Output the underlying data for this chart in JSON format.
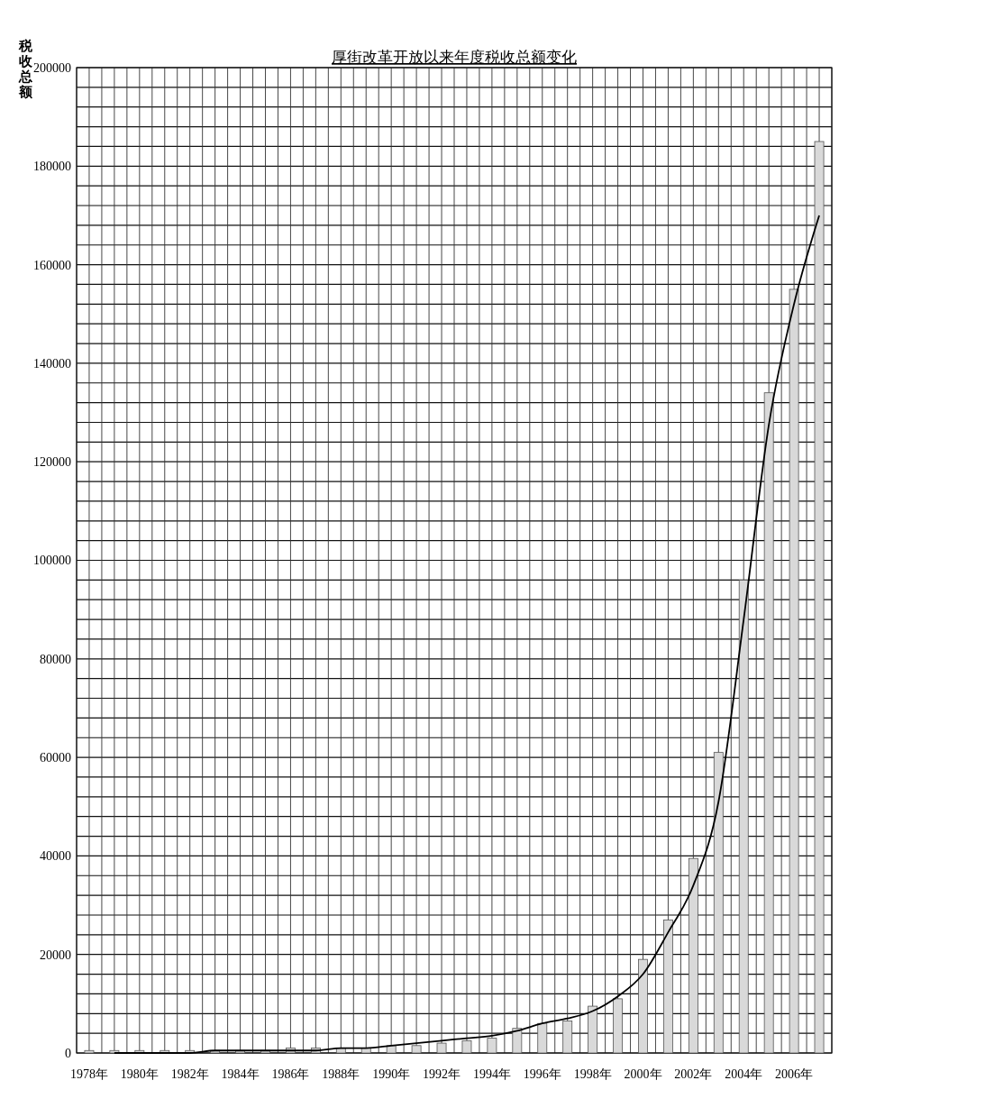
{
  "chart_data": {
    "type": "bar",
    "title": "厚街改革开放以来年度税收总额变化",
    "ylabel": "税收总额",
    "categories": [
      "1978年",
      null,
      "1980年",
      null,
      "1982年",
      null,
      "1984年",
      null,
      "1986年",
      null,
      "1988年",
      null,
      "1990年",
      null,
      "1992年",
      null,
      "1994年",
      null,
      "1996年",
      null,
      "1998年",
      null,
      "2000年",
      null,
      "2002年",
      null,
      "2004年",
      null,
      "2006年",
      null
    ],
    "series": [
      {
        "color": "#d9d9d9",
        "values": [
          500,
          500,
          500,
          500,
          500,
          500,
          500,
          500,
          1000,
          1000,
          1000,
          1000,
          1500,
          1500,
          2000,
          2500,
          3000,
          5000,
          6000,
          6500,
          9500,
          11000,
          19000,
          27000,
          39500,
          61000,
          96000,
          134000,
          155000,
          185000
        ]
      },
      {
        "type": "line",
        "color": "#000000",
        "values": [
          null,
          0,
          0,
          0,
          0,
          500,
          500,
          500,
          500,
          500,
          1000,
          1000,
          1500,
          2000,
          2500,
          3000,
          3500,
          4500,
          6000,
          7000,
          8500,
          11500,
          16000,
          24500,
          34000,
          51000,
          88000,
          127500,
          152000,
          170000
        ]
      }
    ],
    "ylim": [
      0,
      200000
    ],
    "yticks": [
      0,
      {
        "value": 4000,
        "label": null
      },
      {
        "value": 8000,
        "label": null
      },
      {
        "value": 12000,
        "label": null
      },
      {
        "value": 16000,
        "label": null
      },
      20000,
      {
        "value": 24000,
        "label": null
      },
      {
        "value": 28000,
        "label": null
      },
      {
        "value": 32000,
        "label": null
      },
      {
        "value": 36000,
        "label": null
      },
      40000,
      {
        "value": 44000,
        "label": null
      },
      {
        "value": 48000,
        "label": null
      },
      {
        "value": 52000,
        "label": null
      },
      {
        "value": 56000,
        "label": null
      },
      60000,
      {
        "value": 64000,
        "label": null
      },
      {
        "value": 68000,
        "label": null
      },
      {
        "value": 72000,
        "label": null
      },
      {
        "value": 76000,
        "label": null
      },
      80000,
      {
        "value": 84000,
        "label": null
      },
      {
        "value": 88000,
        "label": null
      },
      {
        "value": 92000,
        "label": null
      },
      {
        "value": 96000,
        "label": null
      },
      100000,
      {
        "value": 104000,
        "label": null
      },
      {
        "value": 108000,
        "label": null
      },
      {
        "value": 112000,
        "label": null
      },
      {
        "value": 116000,
        "label": null
      },
      120000,
      {
        "value": 124000,
        "label": null
      },
      {
        "value": 128000,
        "label": null
      },
      {
        "value": 132000,
        "label": null
      },
      {
        "value": 136000,
        "label": null
      },
      140000,
      {
        "value": 144000,
        "label": null
      },
      {
        "value": 148000,
        "label": null
      },
      {
        "value": 152000,
        "label": null
      },
      {
        "value": 156000,
        "label": null
      },
      160000,
      {
        "value": 164000,
        "label": null
      },
      {
        "value": 168000,
        "label": null
      },
      {
        "value": 172000,
        "label": null
      },
      {
        "value": 176000,
        "label": null
      },
      180000,
      {
        "value": 184000,
        "label": null
      },
      {
        "value": 188000,
        "label": null
      },
      {
        "value": 192000,
        "label": null
      },
      {
        "value": 196000,
        "label": null
      },
      200000
    ],
    "grid": true
  }
}
